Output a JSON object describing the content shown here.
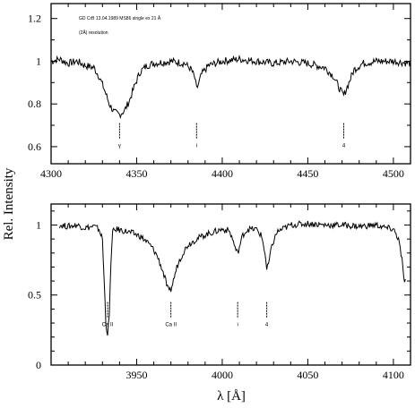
{
  "figure": {
    "ylabel": "Rel. Intensity",
    "xlabel": "λ [Å]"
  },
  "chart_data": [
    {
      "type": "line",
      "panel": "top",
      "xlim": [
        4300,
        4510
      ],
      "ylim": [
        0.52,
        1.27
      ],
      "xticks": [
        4300,
        4350,
        4400,
        4450,
        4500
      ],
      "yticks": [
        0.6,
        0.8,
        1,
        1.2
      ],
      "ytick_labels": [
        "0.6",
        "0.8",
        "1",
        "1.2"
      ],
      "annotations": [
        "GD CrB 13.04.1989 MS86 single ex 21 Å",
        "(2Å) resolution"
      ],
      "line_ids": [
        {
          "x": 4340,
          "label": "γ"
        },
        {
          "x": 4385,
          "label": "i"
        },
        {
          "x": 4471,
          "label": "4"
        }
      ],
      "series": [
        {
          "x": [
            4300,
            4305,
            4310,
            4315,
            4320,
            4325,
            4328,
            4331,
            4334,
            4337,
            4340,
            4343,
            4346,
            4349,
            4352,
            4356,
            4360,
            4370,
            4378,
            4382,
            4384,
            4385,
            4386,
            4388,
            4392,
            4400,
            4410,
            4420,
            4430,
            4440,
            4450,
            4460,
            4465,
            4468,
            4470,
            4471,
            4472,
            4474,
            4477,
            4482,
            4490,
            4500,
            4510
          ],
          "y": [
            1.0,
            1.01,
            0.99,
            1.0,
            0.98,
            0.97,
            0.93,
            0.87,
            0.8,
            0.76,
            0.75,
            0.77,
            0.82,
            0.89,
            0.95,
            0.98,
            0.99,
            1.0,
            0.99,
            0.96,
            0.92,
            0.87,
            0.89,
            0.94,
            0.98,
            1.0,
            1.01,
            1.0,
            0.99,
            1.0,
            0.99,
            0.97,
            0.93,
            0.88,
            0.85,
            0.84,
            0.86,
            0.9,
            0.96,
            0.99,
            1.0,
            1.0,
            0.99
          ]
        }
      ]
    },
    {
      "type": "line",
      "panel": "bottom",
      "xlim": [
        3900,
        4110
      ],
      "ylim": [
        0,
        1.15
      ],
      "xticks": [
        3950,
        4000,
        4050,
        4100
      ],
      "yticks": [
        0,
        0.5,
        1
      ],
      "ytick_labels": [
        "0",
        "0.5",
        "1"
      ],
      "line_ids": [
        {
          "x": 3933,
          "label": "Ca II"
        },
        {
          "x": 3970,
          "label": "Ca II"
        },
        {
          "x": 4009,
          "label": "i"
        },
        {
          "x": 4026,
          "label": "4"
        }
      ],
      "series": [
        {
          "x": [
            3905,
            3910,
            3915,
            3920,
            3925,
            3928,
            3930,
            3931,
            3932,
            3933,
            3934,
            3935,
            3936,
            3938,
            3942,
            3948,
            3952,
            3956,
            3959,
            3962,
            3965,
            3967,
            3968,
            3969,
            3970,
            3971,
            3972,
            3974,
            3977,
            3980,
            3985,
            3990,
            3995,
            4000,
            4004,
            4006,
            4008,
            4009,
            4010,
            4012,
            4015,
            4020,
            4023,
            4025,
            4026,
            4027,
            4029,
            4032,
            4040,
            4050,
            4060,
            4070,
            4080,
            4090,
            4095,
            4100,
            4103,
            4105,
            4106,
            4107
          ],
          "y": [
            1.0,
            0.99,
            1.0,
            0.98,
            0.99,
            0.97,
            0.9,
            0.6,
            0.3,
            0.22,
            0.35,
            0.75,
            0.95,
            0.97,
            0.96,
            0.94,
            0.92,
            0.88,
            0.84,
            0.78,
            0.68,
            0.6,
            0.55,
            0.52,
            0.54,
            0.58,
            0.63,
            0.72,
            0.8,
            0.86,
            0.9,
            0.93,
            0.95,
            0.97,
            0.96,
            0.9,
            0.82,
            0.8,
            0.84,
            0.93,
            0.97,
            0.97,
            0.92,
            0.8,
            0.68,
            0.72,
            0.85,
            0.95,
            1.0,
            1.01,
            1.0,
            1.0,
            0.99,
            1.0,
            0.98,
            0.97,
            0.9,
            0.75,
            0.62,
            0.6
          ]
        }
      ]
    }
  ]
}
